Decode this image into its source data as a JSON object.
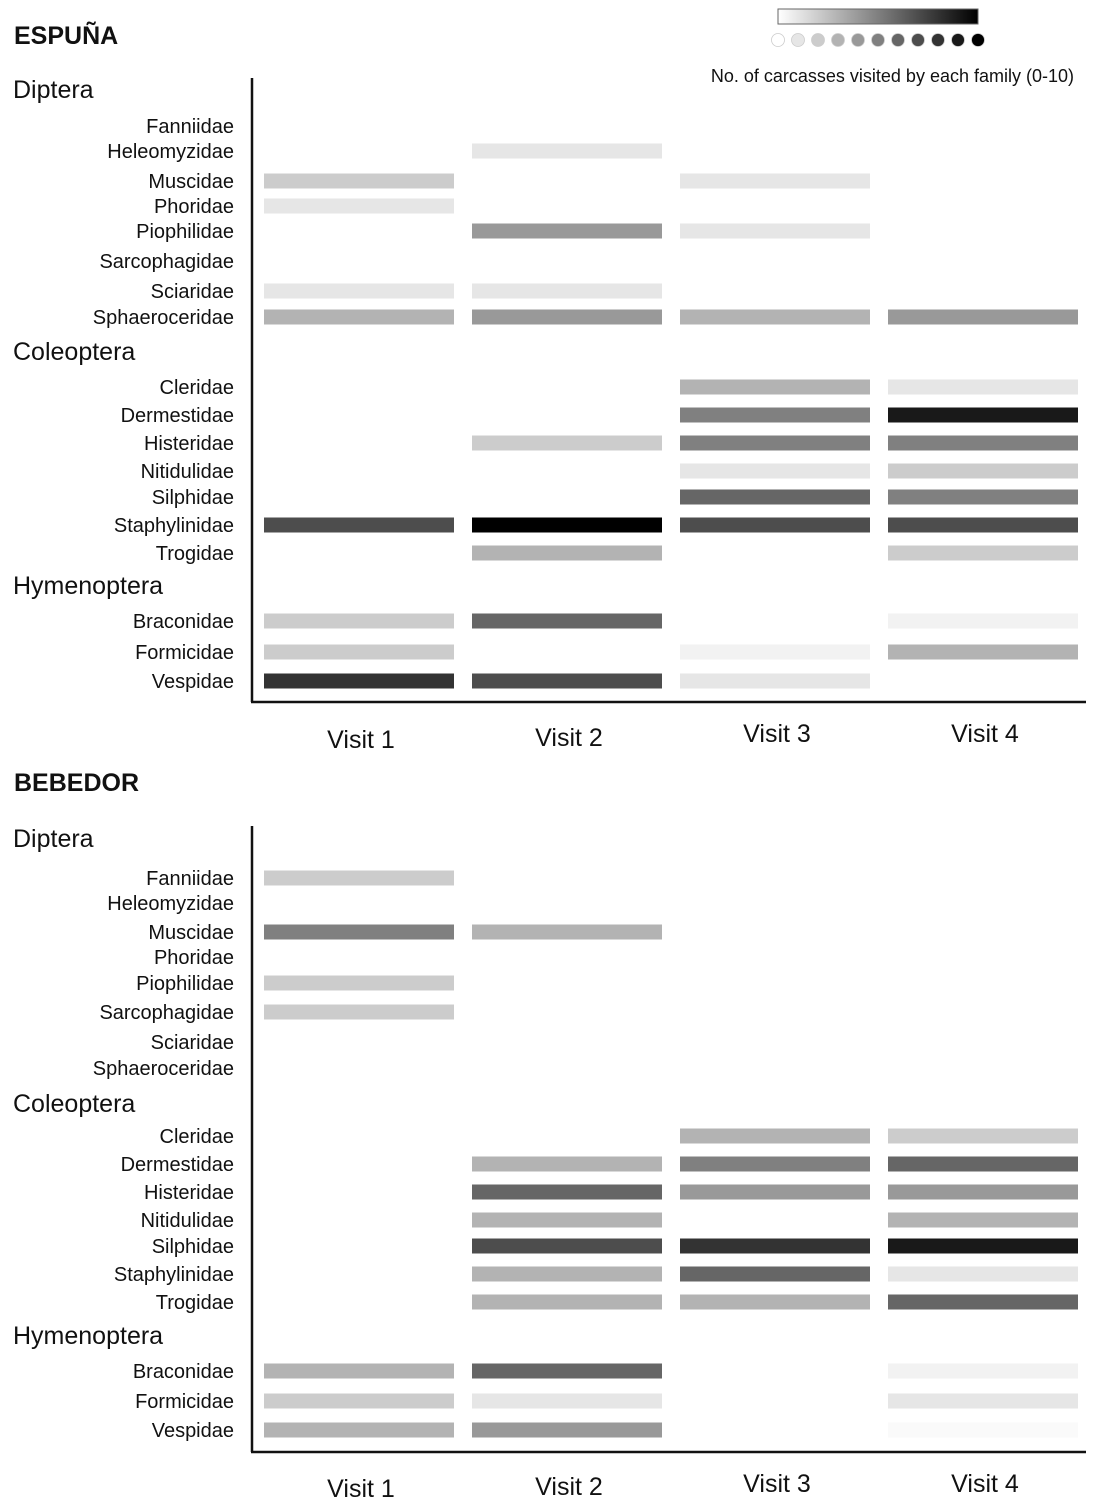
{
  "chart_data": {
    "type": "heatmap",
    "value_range": [
      0,
      10
    ],
    "color_scale": {
      "low": "#ffffff",
      "high": "#000000"
    },
    "legend": {
      "caption": "No. of carcasses visited by each family (0-10)",
      "levels": [
        0,
        1,
        2,
        3,
        4,
        5,
        6,
        7,
        8,
        9,
        10
      ]
    },
    "visits": [
      "Visit 1",
      "Visit 2",
      "Visit 3",
      "Visit 4"
    ],
    "panels": [
      {
        "site": "ESPUÑA",
        "groups": [
          {
            "order": "Diptera",
            "families": [
              {
                "name": "Fanniidae",
                "values": [
                  0,
                  0,
                  0,
                  0
                ]
              },
              {
                "name": "Heleomyzidae",
                "values": [
                  0,
                  1,
                  0,
                  0
                ]
              },
              {
                "name": "Muscidae",
                "values": [
                  2,
                  0,
                  1,
                  0
                ]
              },
              {
                "name": "Phoridae",
                "values": [
                  1,
                  0,
                  0,
                  0
                ]
              },
              {
                "name": "Piophilidae",
                "values": [
                  0,
                  4,
                  1,
                  0
                ]
              },
              {
                "name": "Sarcophagidae",
                "values": [
                  0,
                  0,
                  0,
                  0
                ]
              },
              {
                "name": "Sciaridae",
                "values": [
                  1,
                  1,
                  0,
                  0
                ]
              },
              {
                "name": "Sphaeroceridae",
                "values": [
                  3,
                  4,
                  3,
                  4
                ]
              }
            ]
          },
          {
            "order": "Coleoptera",
            "families": [
              {
                "name": "Cleridae",
                "values": [
                  0,
                  0,
                  3,
                  1
                ]
              },
              {
                "name": "Dermestidae",
                "values": [
                  0,
                  0,
                  5,
                  9
                ]
              },
              {
                "name": "Histeridae",
                "values": [
                  0,
                  2,
                  5,
                  5
                ]
              },
              {
                "name": "Nitidulidae",
                "values": [
                  0,
                  0,
                  1,
                  2
                ]
              },
              {
                "name": "Silphidae",
                "values": [
                  0,
                  0,
                  6,
                  5
                ]
              },
              {
                "name": "Staphylinidae",
                "values": [
                  7,
                  10,
                  7,
                  7
                ]
              },
              {
                "name": "Trogidae",
                "values": [
                  0,
                  3,
                  0,
                  2
                ]
              }
            ]
          },
          {
            "order": "Hymenoptera",
            "families": [
              {
                "name": "Braconidae",
                "values": [
                  2,
                  6,
                  0,
                  0.5
                ]
              },
              {
                "name": "Formicidae",
                "values": [
                  2,
                  0,
                  0.5,
                  3
                ]
              },
              {
                "name": "Vespidae",
                "values": [
                  8,
                  7,
                  1,
                  0
                ]
              }
            ]
          }
        ]
      },
      {
        "site": "BEBEDOR",
        "groups": [
          {
            "order": "Diptera",
            "families": [
              {
                "name": "Fanniidae",
                "values": [
                  2,
                  0,
                  0,
                  0
                ]
              },
              {
                "name": "Heleomyzidae",
                "values": [
                  0,
                  0,
                  0,
                  0
                ]
              },
              {
                "name": "Muscidae",
                "values": [
                  5,
                  3,
                  0,
                  0
                ]
              },
              {
                "name": "Phoridae",
                "values": [
                  0,
                  0,
                  0,
                  0
                ]
              },
              {
                "name": "Piophilidae",
                "values": [
                  2,
                  0,
                  0,
                  0
                ]
              },
              {
                "name": "Sarcophagidae",
                "values": [
                  2,
                  0,
                  0,
                  0
                ]
              },
              {
                "name": "Sciaridae",
                "values": [
                  0,
                  0,
                  0,
                  0
                ]
              },
              {
                "name": "Sphaeroceridae",
                "values": [
                  0,
                  0,
                  0,
                  0
                ]
              }
            ]
          },
          {
            "order": "Coleoptera",
            "families": [
              {
                "name": "Cleridae",
                "values": [
                  0,
                  0,
                  3,
                  2
                ]
              },
              {
                "name": "Dermestidae",
                "values": [
                  0,
                  3,
                  5,
                  6
                ]
              },
              {
                "name": "Histeridae",
                "values": [
                  0,
                  6,
                  4,
                  4
                ]
              },
              {
                "name": "Nitidulidae",
                "values": [
                  0,
                  3,
                  0,
                  3
                ]
              },
              {
                "name": "Silphidae",
                "values": [
                  0,
                  7,
                  8,
                  9
                ]
              },
              {
                "name": "Staphylinidae",
                "values": [
                  0,
                  3,
                  6,
                  1
                ]
              },
              {
                "name": "Trogidae",
                "values": [
                  0,
                  3,
                  3,
                  6
                ]
              }
            ]
          },
          {
            "order": "Hymenoptera",
            "families": [
              {
                "name": "Braconidae",
                "values": [
                  3,
                  6,
                  0,
                  0.5
                ]
              },
              {
                "name": "Formicidae",
                "values": [
                  2,
                  1,
                  0,
                  1
                ]
              },
              {
                "name": "Vespidae",
                "values": [
                  3,
                  4,
                  0,
                  0.2
                ]
              }
            ]
          }
        ]
      }
    ]
  }
}
